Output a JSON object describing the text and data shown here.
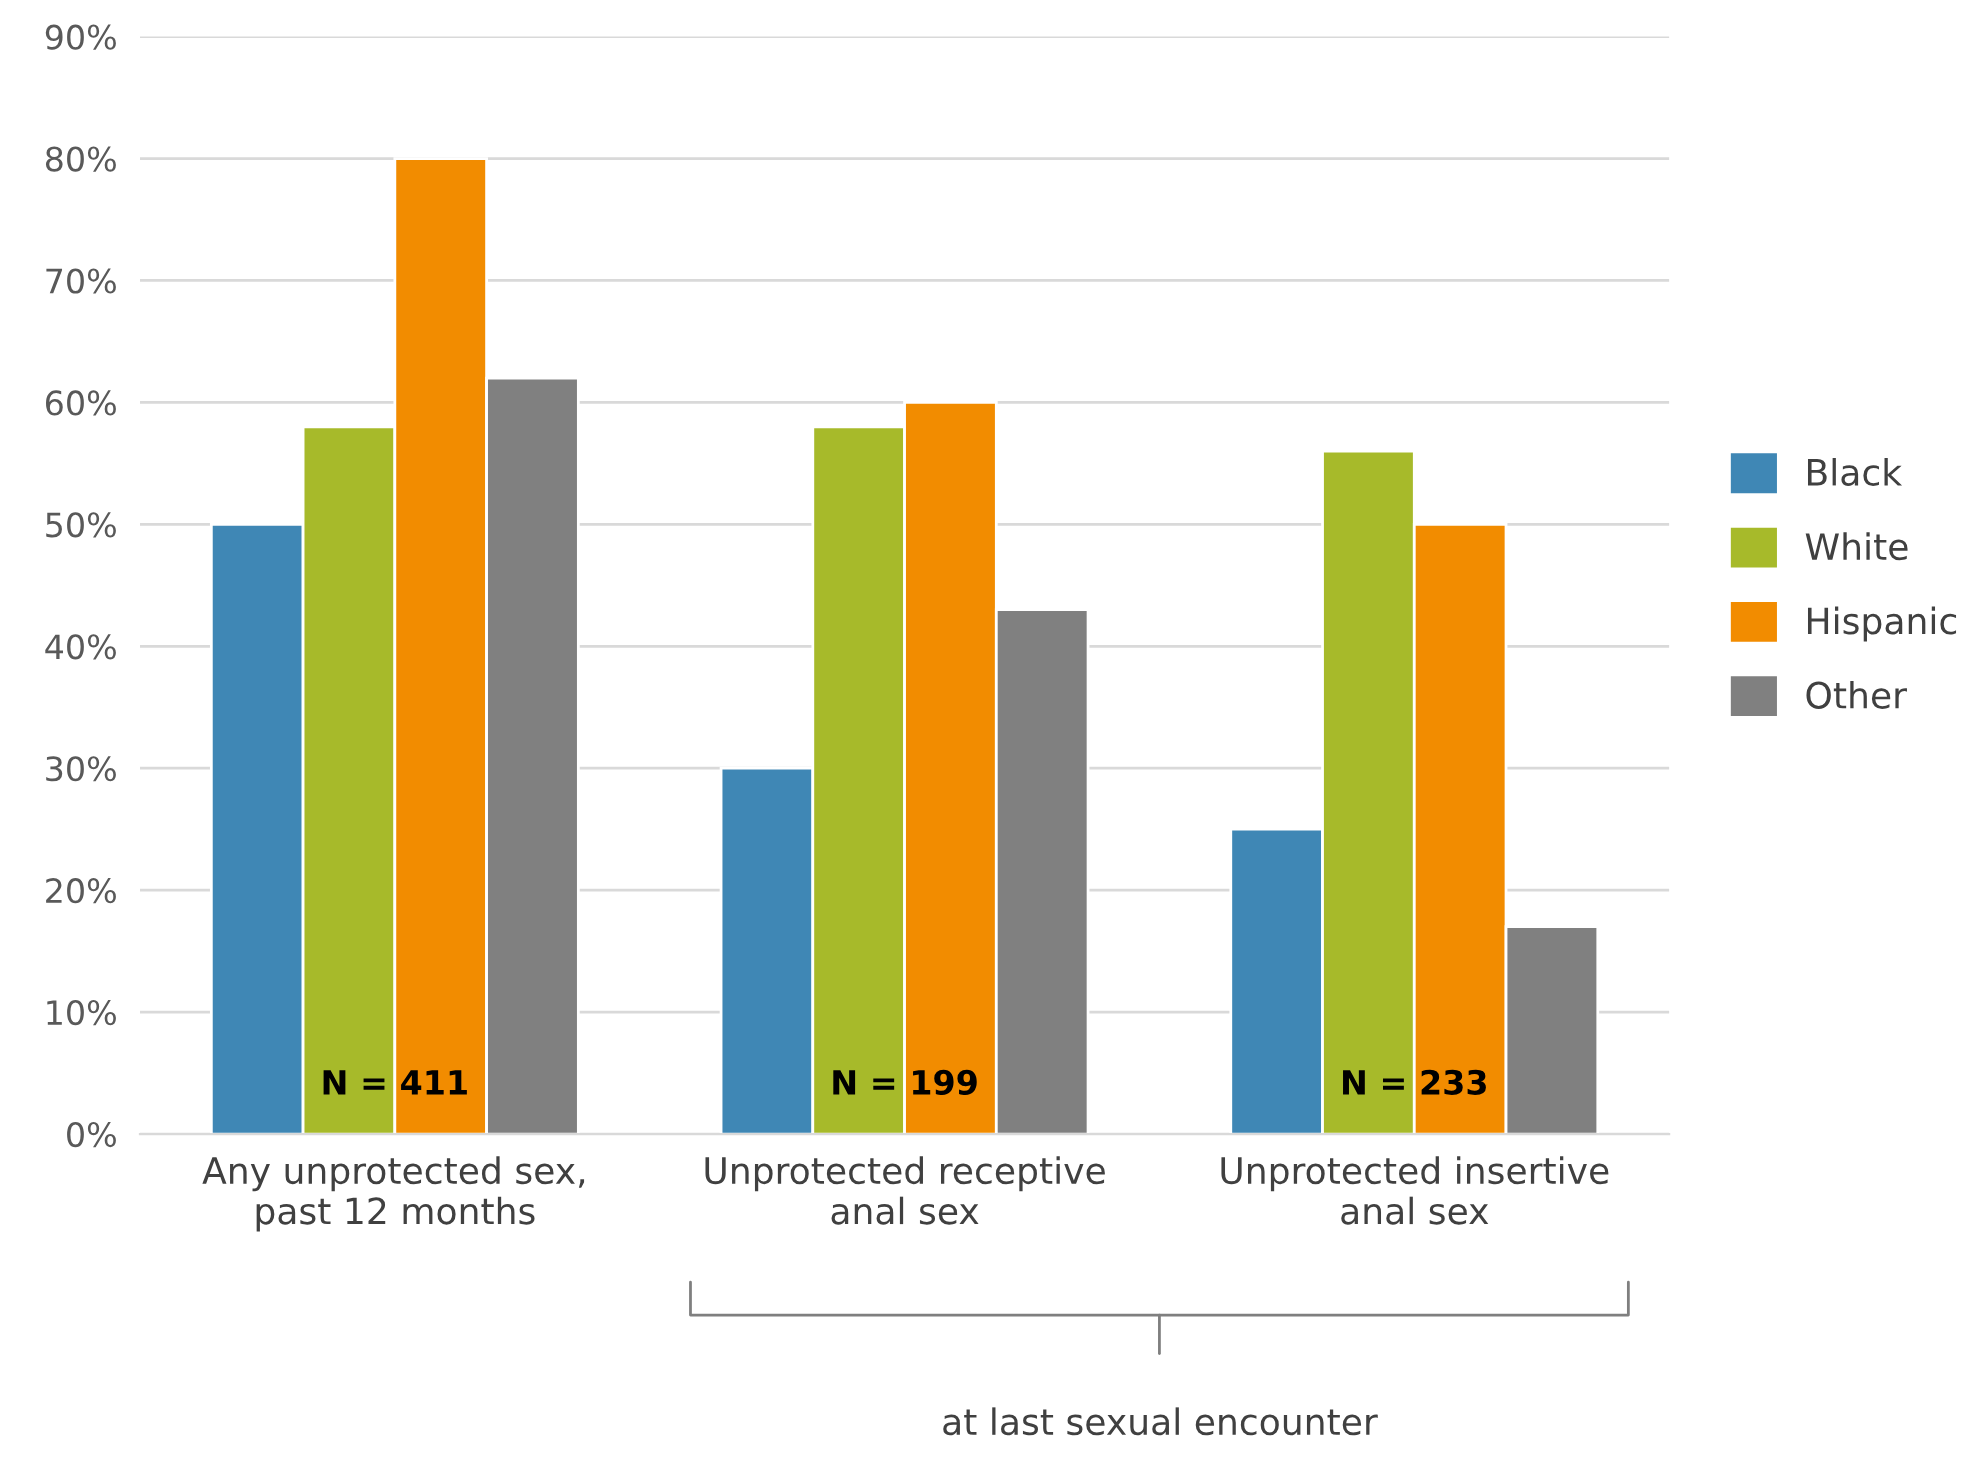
{
  "chart_data": {
    "type": "bar",
    "categories": [
      "Any unprotected sex,\npast 12 months",
      "Unprotected receptive\nanal sex",
      "Unprotected insertive\nanal sex"
    ],
    "series": [
      {
        "name": "Black",
        "color": "#3f87b5",
        "values": [
          50,
          30,
          25
        ]
      },
      {
        "name": "White",
        "color": "#a7ba2a",
        "values": [
          58,
          58,
          56
        ]
      },
      {
        "name": "Hispanic",
        "color": "#f28c00",
        "values": [
          80,
          60,
          50
        ]
      },
      {
        "name": "Other",
        "color": "#808080",
        "values": [
          62,
          43,
          17
        ]
      }
    ],
    "ylim": [
      0,
      90
    ],
    "yticks": [
      {
        "value": 0,
        "label": "0%"
      },
      {
        "value": 10,
        "label": "10%"
      },
      {
        "value": 20,
        "label": "20%"
      },
      {
        "value": 30,
        "label": "30%"
      },
      {
        "value": 40,
        "label": "40%"
      },
      {
        "value": 50,
        "label": "50%"
      },
      {
        "value": 60,
        "label": "60%"
      },
      {
        "value": 70,
        "label": "70%"
      },
      {
        "value": 80,
        "label": "80%"
      },
      {
        "value": 90,
        "label": "90%"
      }
    ],
    "grid": "y",
    "legend": "right",
    "annotations": [
      {
        "text": "N = 411",
        "x": "Any unprotected sex,\npast 12 months",
        "y": 4
      },
      {
        "text": "N = 199",
        "x": "Unprotected receptive\nanal sex",
        "y": 4
      },
      {
        "text": "N = 233",
        "x": "Unprotected insertive\nanal sex",
        "y": 4
      },
      "at last sexual encounter"
    ]
  }
}
